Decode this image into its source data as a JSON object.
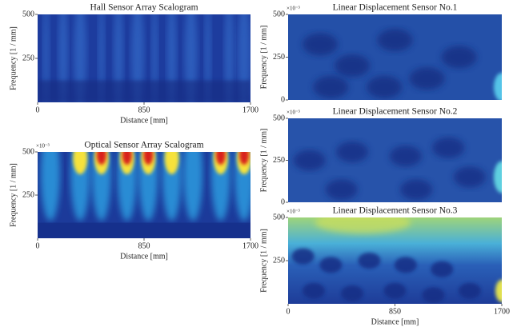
{
  "chart_data": [
    {
      "type": "heatmap",
      "title": "Hall Sensor Array Scalogram",
      "xlabel": "Distance [mm]",
      "ylabel": "Frequency [1 / mm]",
      "xlim": [
        0,
        1700
      ],
      "xticks": [
        0,
        850,
        1700
      ],
      "ylim": [
        0,
        500
      ],
      "yticks": [
        250,
        500
      ]
    },
    {
      "type": "heatmap",
      "title": "Optical Sensor Array Scalogram",
      "xlabel": "Distance [mm]",
      "ylabel": "Frequency [1 / mm]",
      "y_multiplier": "×10⁻³",
      "xlim": [
        0,
        1700
      ],
      "xticks": [
        0,
        850,
        1700
      ],
      "ylim": [
        0,
        500
      ],
      "yticks": [
        250,
        500
      ]
    },
    {
      "type": "heatmap",
      "title": "Linear Displacement Sensor No.1",
      "ylabel": "Frequency [1 / mm]",
      "y_multiplier": "×10⁻³",
      "ylim": [
        0,
        500
      ],
      "yticks": [
        0,
        250,
        500
      ]
    },
    {
      "type": "heatmap",
      "title": "Linear Displacement Sensor No.2",
      "ylabel": "Frequency [1 / mm]",
      "y_multiplier": "×10⁻³",
      "ylim": [
        0,
        500
      ],
      "yticks": [
        0,
        250,
        500
      ]
    },
    {
      "type": "heatmap",
      "title": "Linear Displacement Sensor No.3",
      "xlabel": "Distance [mm]",
      "ylabel": "Frequency [1 / mm]",
      "y_multiplier": "×10⁻³",
      "xlim": [
        0,
        1700
      ],
      "xticks": [
        0,
        850,
        1700
      ],
      "ylim": [
        0,
        500
      ],
      "yticks": [
        250,
        500
      ]
    }
  ]
}
